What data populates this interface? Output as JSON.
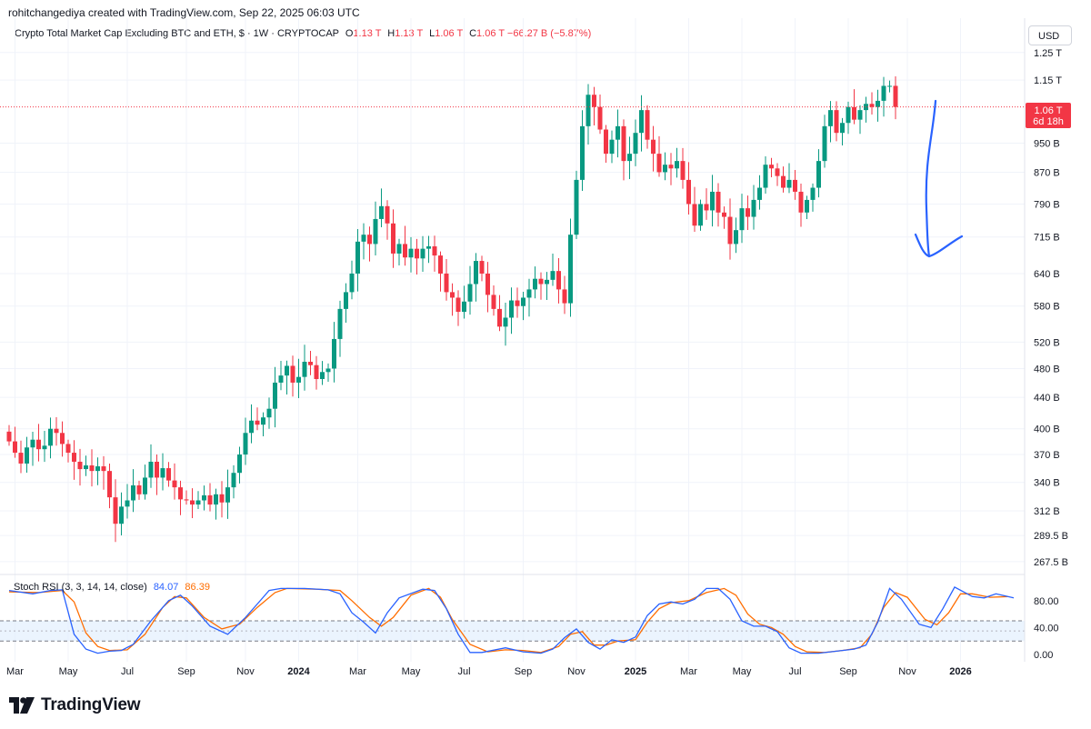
{
  "header": {
    "attribution": "rohitchangediya created with TradingView.com, Sep 22, 2025 06:03 UTC"
  },
  "legend": {
    "symbol": "Crypto Total Market Cap Excluding BTC and ETH, $ · 1W · CRYPTOCAP",
    "open_label": "O",
    "open": "1.13 T",
    "high_label": "H",
    "high": "1.13 T",
    "low_label": "L",
    "low": "1.06 T",
    "close_label": "C",
    "close": "1.06 T",
    "change": "−66.27 B (−5.87%)"
  },
  "currency": "USD",
  "price_tag": {
    "price": "1.06 T",
    "countdown": "6d 18h"
  },
  "stoch": {
    "label": "Stoch RSI (3, 3, 14, 14, close)",
    "k_value": "84.07",
    "d_value": "86.39"
  },
  "brand": {
    "name": "TradingView"
  },
  "colors": {
    "up": "#089981",
    "down": "#f23645",
    "k_line": "#2962ff",
    "d_line": "#ff6d00",
    "annotation": "#2962ff",
    "grid": "#f0f3fa",
    "band": "#e3f0fd"
  },
  "chart_data": [
    {
      "type": "candlestick",
      "title": "Crypto Total Market Cap Excluding BTC and ETH, $ · 1W · CRYPTOCAP",
      "scale": "log",
      "ylim": [
        258,
        1320
      ],
      "y_ticks": [
        {
          "v": 1250,
          "label": "1.25 T"
        },
        {
          "v": 1150,
          "label": "1.15 T"
        },
        {
          "v": 950,
          "label": "950 B"
        },
        {
          "v": 870,
          "label": "870 B"
        },
        {
          "v": 790,
          "label": "790 B"
        },
        {
          "v": 715,
          "label": "715 B"
        },
        {
          "v": 640,
          "label": "640 B"
        },
        {
          "v": 580,
          "label": "580 B"
        },
        {
          "v": 520,
          "label": "520 B"
        },
        {
          "v": 480,
          "label": "480 B"
        },
        {
          "v": 440,
          "label": "440 B"
        },
        {
          "v": 400,
          "label": "400 B"
        },
        {
          "v": 370,
          "label": "370 B"
        },
        {
          "v": 340,
          "label": "340 B"
        },
        {
          "v": 312,
          "label": "312 B"
        },
        {
          "v": 289.5,
          "label": "289.5 B"
        },
        {
          "v": 267.5,
          "label": "267.5 B"
        }
      ],
      "x_ticks": [
        {
          "i": 1,
          "label": "Mar",
          "bold": false
        },
        {
          "i": 10,
          "label": "May",
          "bold": false
        },
        {
          "i": 20,
          "label": "Jul",
          "bold": false
        },
        {
          "i": 30,
          "label": "Sep",
          "bold": false
        },
        {
          "i": 40,
          "label": "Nov",
          "bold": false
        },
        {
          "i": 49,
          "label": "2024",
          "bold": true
        },
        {
          "i": 59,
          "label": "Mar",
          "bold": false
        },
        {
          "i": 68,
          "label": "May",
          "bold": false
        },
        {
          "i": 77,
          "label": "Jul",
          "bold": false
        },
        {
          "i": 87,
          "label": "Sep",
          "bold": false
        },
        {
          "i": 96,
          "label": "Nov",
          "bold": false
        },
        {
          "i": 106,
          "label": "2025",
          "bold": true
        },
        {
          "i": 115,
          "label": "Mar",
          "bold": false
        },
        {
          "i": 124,
          "label": "May",
          "bold": false
        },
        {
          "i": 133,
          "label": "Jul",
          "bold": false
        },
        {
          "i": 142,
          "label": "Sep",
          "bold": false
        },
        {
          "i": 152,
          "label": "Nov",
          "bold": false
        },
        {
          "i": 161,
          "label": "2026",
          "bold": true
        }
      ],
      "last_price": 1060,
      "x_slots": 166,
      "closes": [
        385,
        372,
        360,
        378,
        387,
        376,
        380,
        400,
        395,
        382,
        372,
        362,
        354,
        358,
        352,
        357,
        352,
        325,
        300,
        316,
        322,
        337,
        328,
        345,
        362,
        345,
        355,
        342,
        335,
        323,
        322,
        318,
        322,
        327,
        318,
        328,
        320,
        335,
        350,
        370,
        395,
        410,
        405,
        414,
        425,
        460,
        470,
        484,
        460,
        468,
        490,
        485,
        465,
        475,
        480,
        525,
        575,
        605,
        640,
        705,
        720,
        700,
        755,
        785,
        745,
        680,
        700,
        672,
        690,
        670,
        690,
        695,
        676,
        640,
        605,
        595,
        570,
        588,
        620,
        665,
        640,
        600,
        575,
        545,
        560,
        590,
        580,
        595,
        610,
        630,
        620,
        628,
        645,
        610,
        585,
        720,
        850,
        1000,
        1100,
        1060,
        990,
        920,
        960,
        1000,
        900,
        920,
        980,
        1050,
        960,
        920,
        870,
        890,
        880,
        900,
        850,
        790,
        740,
        790,
        775,
        820,
        770,
        760,
        700,
        730,
        780,
        760,
        800,
        830,
        890,
        880,
        860,
        830,
        850,
        820,
        770,
        800,
        830,
        900,
        1000,
        1050,
        980,
        1010,
        1060,
        1020,
        1050,
        1070,
        1060,
        1080,
        1130,
        1130,
        1060
      ],
      "stoch_rsi": {
        "ylim": [
          -8,
          108
        ],
        "y_ticks": [
          {
            "v": 80,
            "label": "80.00"
          },
          {
            "v": 40,
            "label": "40.00"
          },
          {
            "v": 0,
            "label": "0.00"
          }
        ],
        "bands": [
          20,
          50
        ],
        "k": [
          [
            0,
            95
          ],
          [
            4,
            90
          ],
          [
            7,
            95
          ],
          [
            9,
            96
          ],
          [
            11,
            30
          ],
          [
            13,
            8
          ],
          [
            15,
            2
          ],
          [
            17,
            5
          ],
          [
            19,
            6
          ],
          [
            21,
            15
          ],
          [
            24,
            50
          ],
          [
            27,
            80
          ],
          [
            29,
            88
          ],
          [
            31,
            72
          ],
          [
            34,
            42
          ],
          [
            37,
            30
          ],
          [
            40,
            55
          ],
          [
            42,
            75
          ],
          [
            44,
            95
          ],
          [
            46,
            98
          ],
          [
            50,
            98
          ],
          [
            54,
            96
          ],
          [
            56,
            90
          ],
          [
            58,
            62
          ],
          [
            60,
            48
          ],
          [
            62,
            32
          ],
          [
            64,
            62
          ],
          [
            66,
            84
          ],
          [
            70,
            97
          ],
          [
            72,
            95
          ],
          [
            74,
            68
          ],
          [
            76,
            30
          ],
          [
            78,
            3
          ],
          [
            80,
            3
          ],
          [
            84,
            10
          ],
          [
            87,
            4
          ],
          [
            90,
            2
          ],
          [
            92,
            8
          ],
          [
            94,
            25
          ],
          [
            96,
            38
          ],
          [
            98,
            18
          ],
          [
            100,
            8
          ],
          [
            102,
            22
          ],
          [
            104,
            18
          ],
          [
            106,
            26
          ],
          [
            108,
            58
          ],
          [
            110,
            75
          ],
          [
            112,
            78
          ],
          [
            114,
            75
          ],
          [
            116,
            82
          ],
          [
            118,
            98
          ],
          [
            120,
            98
          ],
          [
            122,
            82
          ],
          [
            124,
            50
          ],
          [
            126,
            42
          ],
          [
            128,
            42
          ],
          [
            130,
            34
          ],
          [
            132,
            10
          ],
          [
            134,
            2
          ],
          [
            137,
            2
          ],
          [
            140,
            5
          ],
          [
            143,
            8
          ],
          [
            145,
            14
          ],
          [
            147,
            48
          ],
          [
            149,
            98
          ],
          [
            151,
            82
          ],
          [
            154,
            45
          ],
          [
            156,
            40
          ],
          [
            158,
            68
          ],
          [
            160,
            100
          ],
          [
            163,
            86
          ],
          [
            165,
            84
          ],
          [
            167,
            90
          ],
          [
            170,
            84
          ]
        ],
        "d": [
          [
            0,
            93
          ],
          [
            5,
            92
          ],
          [
            9,
            95
          ],
          [
            11,
            78
          ],
          [
            13,
            32
          ],
          [
            15,
            12
          ],
          [
            17,
            6
          ],
          [
            20,
            7
          ],
          [
            23,
            30
          ],
          [
            26,
            70
          ],
          [
            28,
            86
          ],
          [
            30,
            84
          ],
          [
            33,
            55
          ],
          [
            36,
            38
          ],
          [
            39,
            45
          ],
          [
            42,
            70
          ],
          [
            45,
            92
          ],
          [
            47,
            98
          ],
          [
            52,
            97
          ],
          [
            56,
            95
          ],
          [
            58,
            80
          ],
          [
            61,
            55
          ],
          [
            63,
            42
          ],
          [
            65,
            55
          ],
          [
            68,
            88
          ],
          [
            71,
            98
          ],
          [
            73,
            85
          ],
          [
            75,
            52
          ],
          [
            78,
            15
          ],
          [
            81,
            4
          ],
          [
            84,
            7
          ],
          [
            87,
            6
          ],
          [
            90,
            3
          ],
          [
            93,
            12
          ],
          [
            95,
            30
          ],
          [
            97,
            34
          ],
          [
            99,
            14
          ],
          [
            101,
            14
          ],
          [
            103,
            20
          ],
          [
            106,
            22
          ],
          [
            108,
            48
          ],
          [
            110,
            68
          ],
          [
            112,
            77
          ],
          [
            115,
            80
          ],
          [
            118,
            92
          ],
          [
            121,
            98
          ],
          [
            123,
            88
          ],
          [
            125,
            60
          ],
          [
            127,
            45
          ],
          [
            129,
            40
          ],
          [
            131,
            30
          ],
          [
            133,
            12
          ],
          [
            135,
            4
          ],
          [
            138,
            3
          ],
          [
            141,
            6
          ],
          [
            144,
            10
          ],
          [
            146,
            30
          ],
          [
            148,
            70
          ],
          [
            150,
            92
          ],
          [
            152,
            85
          ],
          [
            155,
            52
          ],
          [
            157,
            44
          ],
          [
            159,
            62
          ],
          [
            161,
            90
          ],
          [
            163,
            90
          ],
          [
            166,
            85
          ],
          [
            169,
            86
          ]
        ]
      }
    }
  ]
}
